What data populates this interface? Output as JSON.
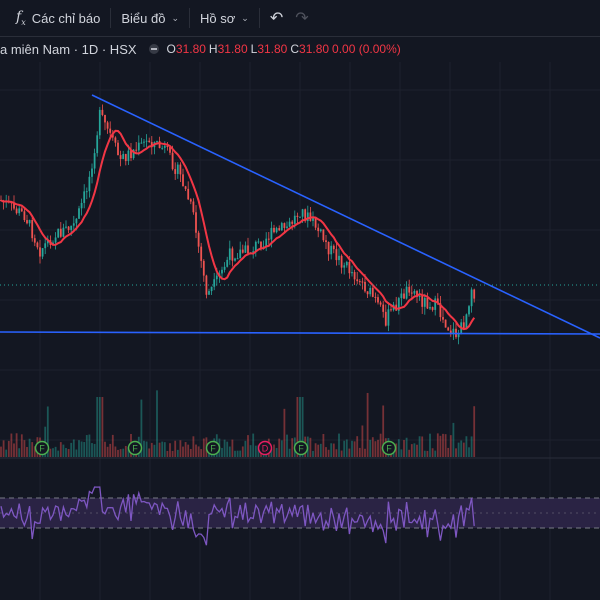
{
  "toolbar": {
    "indicators_label": "Các chỉ báo",
    "chart_type_label": "Biểu đồ",
    "profile_label": "Hồ sơ"
  },
  "legend": {
    "symbol_text": "a miên Nam · 1D · HSX",
    "open_key": "O",
    "open_value": "31.80",
    "high_key": "H",
    "high_value": "31.80",
    "low_key": "L",
    "low_value": "31.80",
    "close_key": "C",
    "close_value": "31.80",
    "change_value": "0.00 (0.00%)"
  },
  "colors": {
    "background": "#131722",
    "candle_up": "#26a69a",
    "candle_down": "#ef5350",
    "moving_average": "#f23645",
    "trendline": "#2962ff",
    "rsi_line": "#7e57c2",
    "rsi_band": "#2a2344",
    "event_badge": "#4caf50",
    "dividend_badge": "#e91e63"
  },
  "events": [
    {
      "label": "F",
      "kind": "earnings"
    },
    {
      "label": "F",
      "kind": "earnings"
    },
    {
      "label": "F",
      "kind": "earnings"
    },
    {
      "label": "D",
      "kind": "dividend"
    },
    {
      "label": "F",
      "kind": "earnings"
    },
    {
      "label": "F",
      "kind": "earnings"
    }
  ],
  "icons": {
    "indicators": "fx-icon",
    "undo": "undo-icon",
    "redo": "redo-icon"
  }
}
